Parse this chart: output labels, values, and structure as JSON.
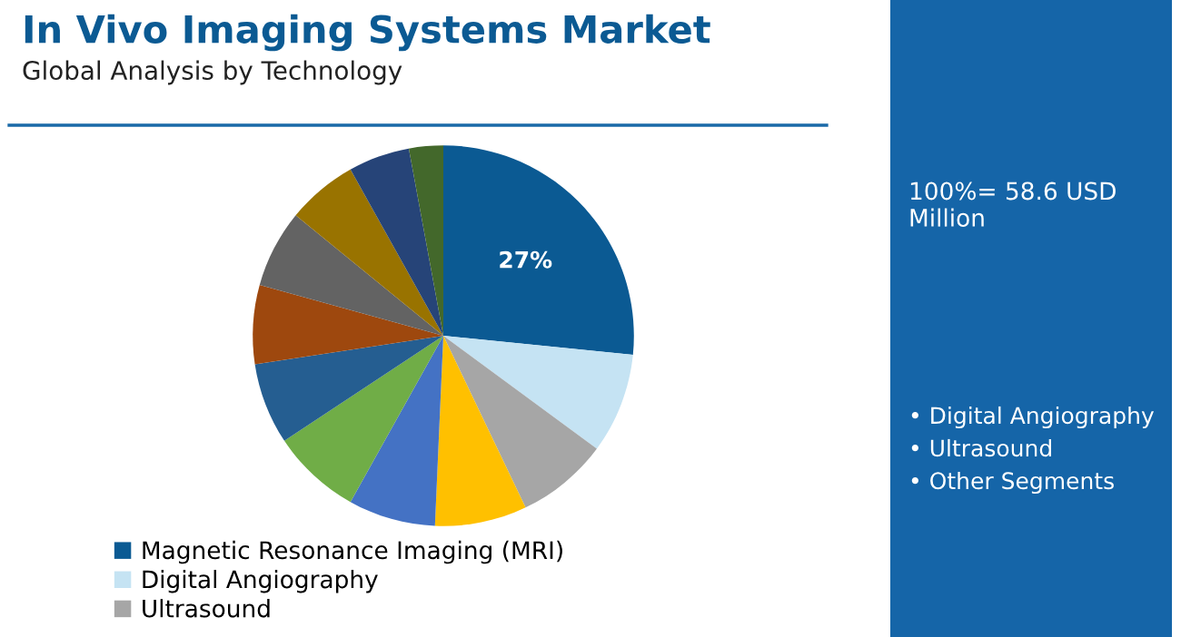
{
  "chart_data": {
    "type": "pie",
    "title": "In Vivo Imaging Systems Market",
    "subtitle": "Global Analysis by Technology",
    "categories": [
      "Magnetic Resonance Imaging (MRI)",
      "Digital Angiography",
      "Ultrasound",
      null,
      null,
      null,
      null,
      null,
      null,
      null,
      null,
      null
    ],
    "values": [
      26.6,
      8.5,
      7.8,
      7.8,
      7.4,
      7.6,
      6.9,
      6.7,
      6.6,
      6.0,
      5.2,
      2.9
    ],
    "value_labels": [
      "27%",
      null,
      null,
      null,
      null,
      null,
      null,
      null,
      null,
      null,
      null,
      null
    ],
    "colors": [
      "#0b5a93",
      "#c5e3f3",
      "#a6a6a6",
      "#ffc000",
      "#4472c4",
      "#70ad47",
      "#255e91",
      "#9e480e",
      "#636363",
      "#997300",
      "#264478",
      "#43682b"
    ],
    "legend": "bottom left",
    "annotations": [
      "100%= 58.6 USD Million",
      "• Digital Angiography",
      "• Ultrasound",
      "• Other Segments"
    ]
  }
}
